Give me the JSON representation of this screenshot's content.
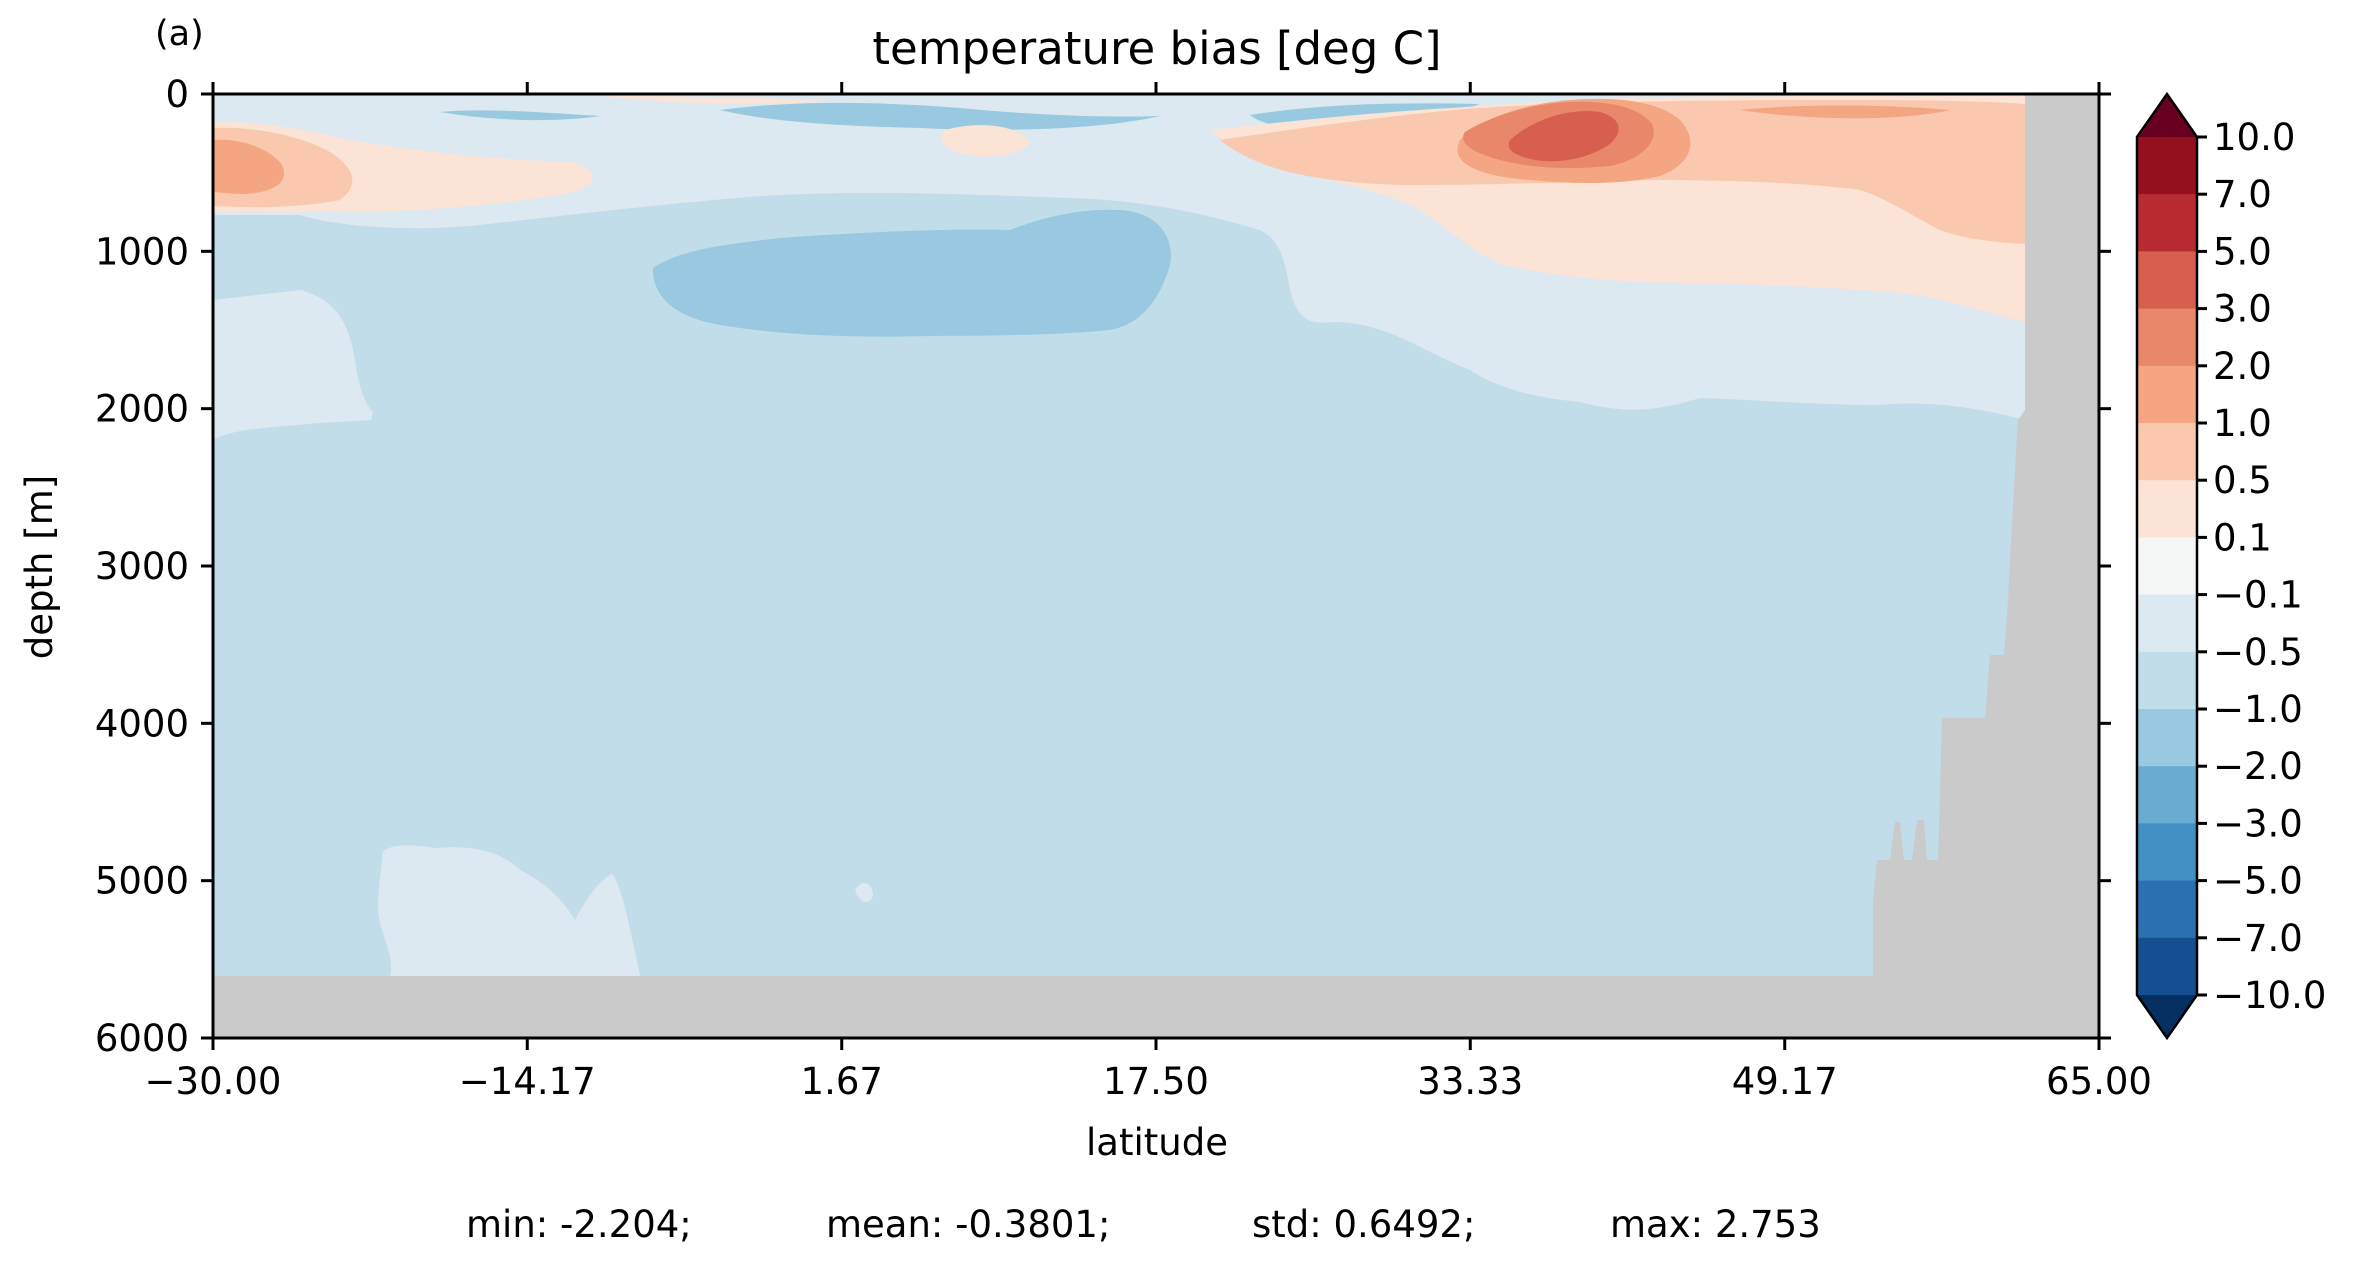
{
  "chart_data": {
    "type": "heatmap",
    "panel_label": "(a)",
    "title": "temperature bias [deg C]",
    "xlabel": "latitude",
    "ylabel": "depth [m]",
    "xlim": [
      -30.0,
      65.0
    ],
    "ylim": [
      6000,
      0
    ],
    "x_ticks": [
      "−30.00",
      "−14.17",
      "1.67",
      "17.50",
      "33.33",
      "49.17",
      "65.00"
    ],
    "x_tick_values": [
      -30.0,
      -14.17,
      1.67,
      17.5,
      33.33,
      49.17,
      65.0
    ],
    "y_ticks": [
      "0",
      "1000",
      "2000",
      "3000",
      "4000",
      "5000",
      "6000"
    ],
    "y_tick_values": [
      0,
      1000,
      2000,
      3000,
      4000,
      5000,
      6000
    ],
    "colorbar": {
      "labels": [
        "10.0",
        "7.0",
        "5.0",
        "3.0",
        "2.0",
        "1.0",
        "0.5",
        "0.1",
        "−0.1",
        "−0.5",
        "−1.0",
        "−2.0",
        "−3.0",
        "−5.0",
        "−7.0",
        "−10.0"
      ],
      "levels": [
        10.0,
        7.0,
        5.0,
        3.0,
        2.0,
        1.0,
        0.5,
        0.1,
        -0.1,
        -0.5,
        -1.0,
        -2.0,
        -3.0,
        -5.0,
        -7.0,
        -10.0
      ],
      "colors": [
        "#67001f",
        "#94101f",
        "#b92b32",
        "#d6604d",
        "#e8876a",
        "#f4a582",
        "#fac8ae",
        "#fbe3d6",
        "#f5f6f6",
        "#dde9f1",
        "#c1ddea",
        "#99c9e0",
        "#6aacd1",
        "#4090c4",
        "#2a71b2",
        "#154f8f",
        "#053061"
      ],
      "extend": "both"
    },
    "land_color": "#cacaca",
    "stats": {
      "min": "min: -2.204;",
      "mean": "mean: -0.3801;",
      "std": "std: 0.6492;",
      "max": "max: 2.753"
    }
  }
}
